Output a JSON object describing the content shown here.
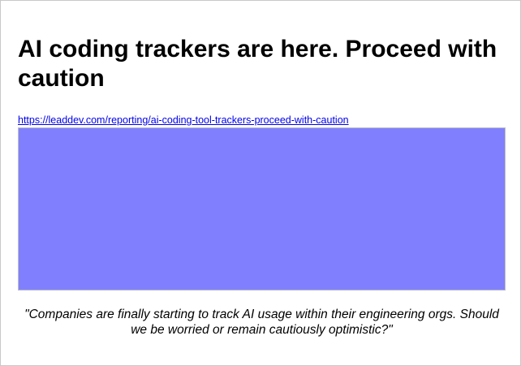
{
  "article": {
    "title": "AI coding trackers are here. Proceed with caution",
    "link_text": "https://leaddev.com/reporting/ai-coding-tool-trackers-proceed-with-caution",
    "link_href": "https://leaddev.com/reporting/ai-coding-tool-trackers-proceed-with-caution",
    "image_color": "#8080ff",
    "quote": "\"Companies are finally starting to track AI usage within their engineering orgs. Should we be worried or remain cautiously optimistic?\""
  }
}
